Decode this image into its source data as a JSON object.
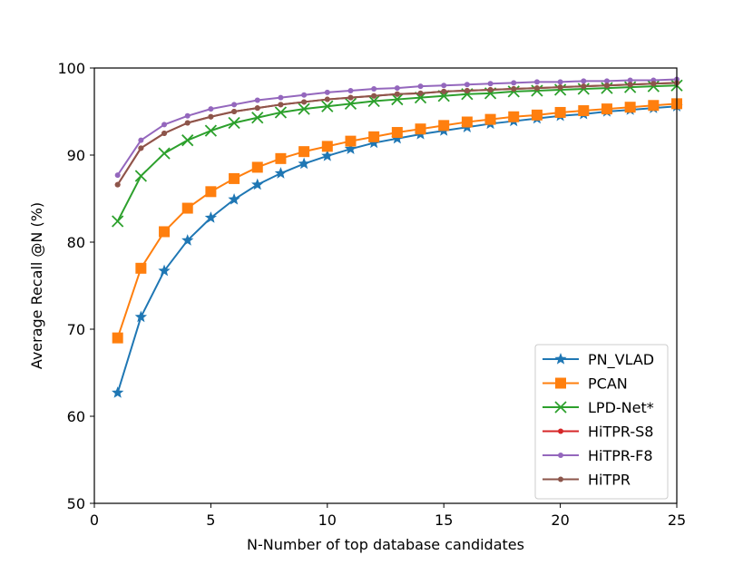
{
  "chart_data": {
    "type": "line",
    "title": "",
    "xlabel": "N-Number of top database candidates",
    "ylabel": "Average Recall @N (%)",
    "xlim": [
      0,
      25
    ],
    "ylim": [
      50,
      100
    ],
    "xticks": [
      0,
      5,
      10,
      15,
      20,
      25
    ],
    "yticks": [
      50,
      60,
      70,
      80,
      90,
      100
    ],
    "grid": false,
    "legend_position": "lower-right",
    "x": [
      1,
      2,
      3,
      4,
      5,
      6,
      7,
      8,
      9,
      10,
      11,
      12,
      13,
      14,
      15,
      16,
      17,
      18,
      19,
      20,
      21,
      22,
      23,
      24,
      25
    ],
    "series": [
      {
        "name": "PN_VLAD",
        "color": "#1f77b4",
        "marker": "star",
        "values": [
          62.7,
          71.4,
          76.7,
          80.2,
          82.8,
          84.9,
          86.6,
          87.9,
          89.0,
          89.9,
          90.7,
          91.4,
          91.9,
          92.4,
          92.8,
          93.2,
          93.6,
          93.9,
          94.2,
          94.5,
          94.7,
          95.0,
          95.2,
          95.4,
          95.6
        ]
      },
      {
        "name": "PCAN",
        "color": "#ff7f0e",
        "marker": "square",
        "values": [
          69.0,
          77.0,
          81.2,
          83.9,
          85.8,
          87.3,
          88.6,
          89.6,
          90.4,
          91.0,
          91.6,
          92.1,
          92.6,
          93.0,
          93.4,
          93.8,
          94.1,
          94.4,
          94.6,
          94.9,
          95.1,
          95.3,
          95.5,
          95.7,
          95.9
        ]
      },
      {
        "name": "LPD-Net*",
        "color": "#2ca02c",
        "marker": "x",
        "values": [
          82.4,
          87.6,
          90.2,
          91.7,
          92.8,
          93.7,
          94.3,
          94.9,
          95.3,
          95.6,
          95.9,
          96.2,
          96.4,
          96.6,
          96.8,
          97.0,
          97.1,
          97.3,
          97.4,
          97.5,
          97.6,
          97.7,
          97.8,
          97.9,
          98.0
        ]
      },
      {
        "name": "HiTPR-S8",
        "color": "#d62728",
        "marker": "dot",
        "values": [
          86.6,
          90.8,
          92.5,
          93.7,
          94.4,
          95.0,
          95.4,
          95.8,
          96.1,
          96.4,
          96.6,
          96.8,
          97.0,
          97.1,
          97.3,
          97.4,
          97.5,
          97.6,
          97.7,
          97.8,
          97.9,
          98.0,
          98.1,
          98.2,
          98.3
        ]
      },
      {
        "name": "HiTPR-F8",
        "color": "#9467bd",
        "marker": "dot",
        "values": [
          87.7,
          91.7,
          93.5,
          94.5,
          95.3,
          95.8,
          96.3,
          96.6,
          96.9,
          97.2,
          97.4,
          97.6,
          97.7,
          97.9,
          98.0,
          98.1,
          98.2,
          98.3,
          98.4,
          98.4,
          98.5,
          98.5,
          98.6,
          98.6,
          98.7
        ]
      },
      {
        "name": "HiTPR",
        "color": "#8c564b",
        "marker": "dot",
        "values": [
          86.6,
          90.8,
          92.5,
          93.7,
          94.4,
          95.0,
          95.4,
          95.8,
          96.1,
          96.4,
          96.6,
          96.8,
          97.0,
          97.1,
          97.3,
          97.4,
          97.5,
          97.6,
          97.7,
          97.8,
          97.9,
          98.0,
          98.1,
          98.2,
          98.3
        ]
      }
    ]
  }
}
